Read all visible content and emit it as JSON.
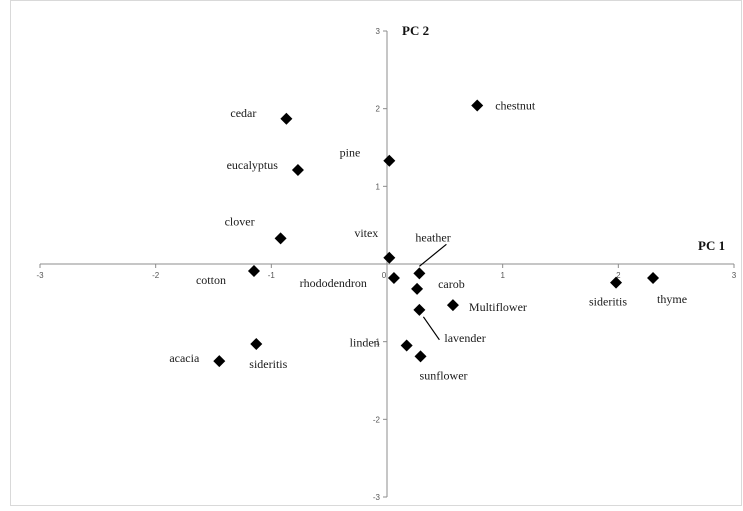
{
  "chart_data": {
    "type": "scatter",
    "title": "",
    "xlabel": "PC 1",
    "ylabel": "PC 2",
    "xlim": [
      -3,
      3
    ],
    "ylim": [
      -3,
      3
    ],
    "x_ticks": [
      "-3",
      "-2",
      "-1",
      "0",
      "1",
      "2",
      "3"
    ],
    "y_ticks": [
      "-3",
      "-2",
      "-1",
      "0",
      "1",
      "2",
      "3"
    ],
    "grid": false,
    "marker": "diamond",
    "marker_color": "#000000",
    "points": [
      {
        "label": "chestnut",
        "x": 0.78,
        "y": 2.04
      },
      {
        "label": "cedar",
        "x": -0.87,
        "y": 1.87
      },
      {
        "label": "eucalyptus",
        "x": -0.77,
        "y": 1.21
      },
      {
        "label": "pine",
        "x": 0.02,
        "y": 1.33
      },
      {
        "label": "clover",
        "x": -0.92,
        "y": 0.33
      },
      {
        "label": "vitex",
        "x": 0.02,
        "y": 0.08
      },
      {
        "label": "heather",
        "x": 0.28,
        "y": -0.12
      },
      {
        "label": "cotton",
        "x": -1.15,
        "y": -0.09
      },
      {
        "label": "rhododendron",
        "x": 0.06,
        "y": -0.18
      },
      {
        "label": "carob",
        "x": 0.26,
        "y": -0.32
      },
      {
        "label": "Multiflower",
        "x": 0.57,
        "y": -0.53
      },
      {
        "label": "lavender",
        "x": 0.28,
        "y": -0.59
      },
      {
        "label": "linden",
        "x": 0.17,
        "y": -1.05
      },
      {
        "label": "sunflower",
        "x": 0.29,
        "y": -1.19
      },
      {
        "label": "sideritis",
        "x": -1.13,
        "y": -1.03
      },
      {
        "label": "acacia",
        "x": -1.45,
        "y": -1.25
      },
      {
        "label": "sideritis",
        "x": 1.98,
        "y": -0.24
      },
      {
        "label": "thyme",
        "x": 2.3,
        "y": -0.18
      }
    ]
  }
}
